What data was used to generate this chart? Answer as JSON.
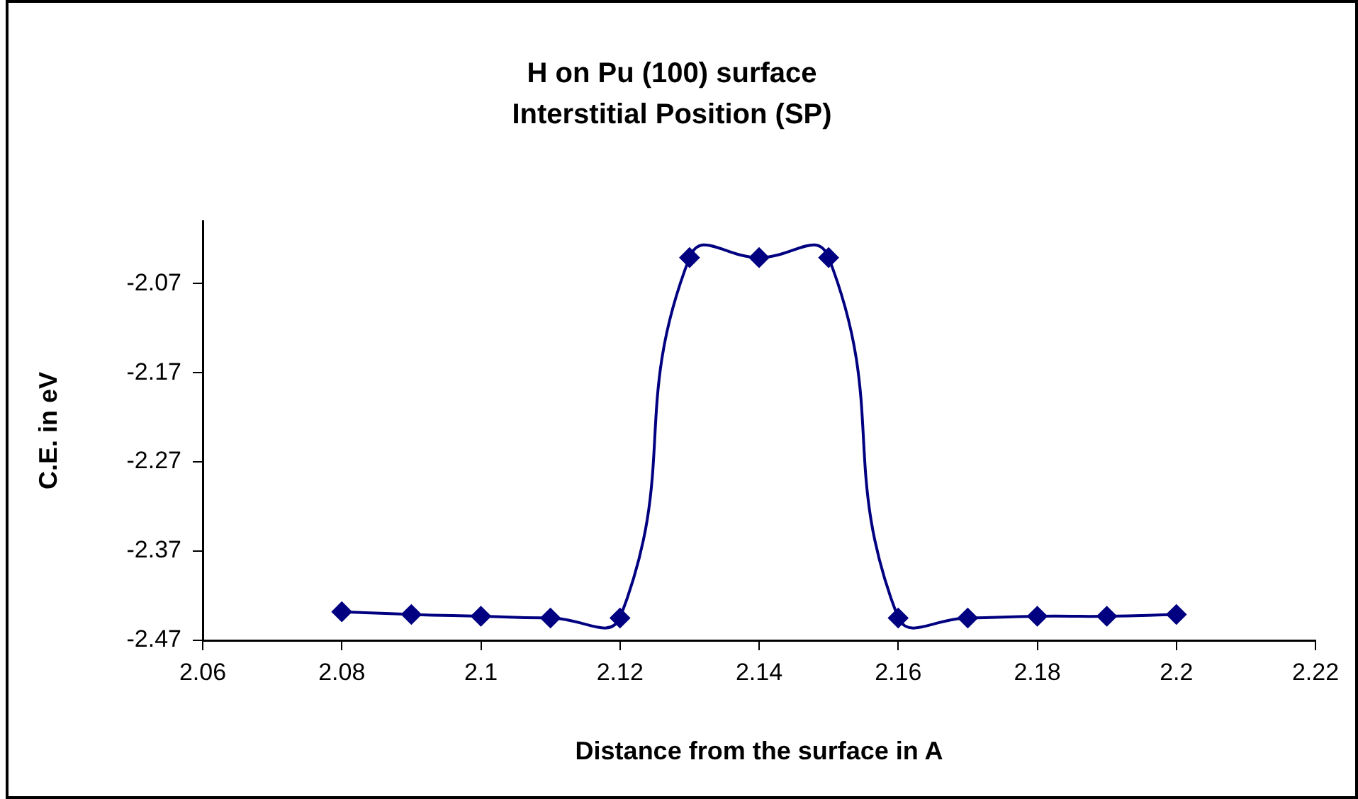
{
  "chart_data": {
    "type": "line",
    "title": "H on Pu (100) surface\nInterstitial Position (SP)",
    "xlabel": "Distance from the surface in A",
    "ylabel": "C.E. in eV",
    "x": [
      2.08,
      2.09,
      2.1,
      2.11,
      2.12,
      2.13,
      2.14,
      2.15,
      2.16,
      2.17,
      2.18,
      2.19,
      2.2
    ],
    "values": [
      -2.438,
      -2.441,
      -2.443,
      -2.445,
      -2.445,
      -2.041,
      -2.041,
      -2.041,
      -2.445,
      -2.445,
      -2.443,
      -2.443,
      -2.441
    ],
    "color": "#000080",
    "marker": "diamond",
    "line_style": "solid",
    "xlim": [
      2.06,
      2.22
    ],
    "xticks": [
      2.06,
      2.08,
      2.1,
      2.12,
      2.14,
      2.16,
      2.18,
      2.2,
      2.22
    ],
    "ylim": [
      -2.47,
      -2.0
    ],
    "yticks": [
      -2.07,
      -2.17,
      -2.27,
      -2.37,
      -2.47
    ]
  }
}
